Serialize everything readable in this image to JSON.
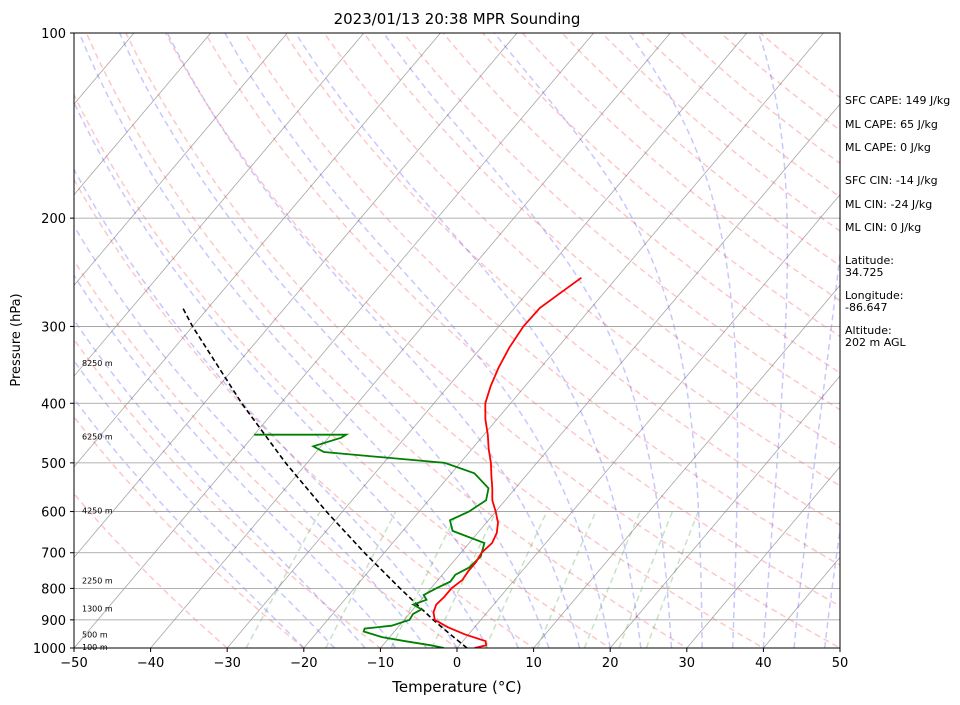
{
  "chart_data": {
    "type": "skew-t",
    "title": "2023/01/13 20:38 MPR Sounding",
    "xlabel": "Temperature (°C)",
    "ylabel": "Pressure (hPa)",
    "xlim": [
      -50,
      50
    ],
    "ylim": [
      1000,
      100
    ],
    "y_scale": "log",
    "grid": true,
    "x_ticks": [
      "−50",
      "−40",
      "−30",
      "−20",
      "−10",
      "0",
      "10",
      "20",
      "30",
      "40",
      "50"
    ],
    "x_tick_values": [
      -50,
      -40,
      -30,
      -20,
      -10,
      0,
      10,
      20,
      30,
      40,
      50
    ],
    "y_ticks": [
      "1000",
      "900",
      "800",
      "700",
      "600",
      "500",
      "400",
      "300",
      "200",
      "100"
    ],
    "y_tick_values": [
      1000,
      900,
      800,
      700,
      600,
      500,
      400,
      300,
      200,
      100
    ],
    "temperature": {
      "color": "#ff0000",
      "points": [
        [
          1000,
          2.3
        ],
        [
          990,
          3.5
        ],
        [
          975,
          3.0
        ],
        [
          950,
          -0.5
        ],
        [
          925,
          -3.5
        ],
        [
          900,
          -6.0
        ],
        [
          875,
          -7.0
        ],
        [
          850,
          -7.5
        ],
        [
          825,
          -7.3
        ],
        [
          800,
          -7.3
        ],
        [
          775,
          -6.8
        ],
        [
          750,
          -7.0
        ],
        [
          725,
          -7.0
        ],
        [
          700,
          -7.3
        ],
        [
          675,
          -7.0
        ],
        [
          650,
          -7.5
        ],
        [
          625,
          -8.5
        ],
        [
          600,
          -10.0
        ],
        [
          575,
          -11.7
        ],
        [
          550,
          -13.0
        ],
        [
          525,
          -14.5
        ],
        [
          500,
          -16.0
        ],
        [
          475,
          -17.8
        ],
        [
          450,
          -19.5
        ],
        [
          425,
          -21.5
        ],
        [
          400,
          -23.3
        ],
        [
          375,
          -24.5
        ],
        [
          350,
          -25.5
        ],
        [
          325,
          -26.3
        ],
        [
          300,
          -26.8
        ],
        [
          280,
          -26.7
        ],
        [
          265,
          -25.7
        ],
        [
          250,
          -24.6
        ]
      ]
    },
    "dewpoint": {
      "color": "#008000",
      "points": [
        [
          1000,
          -1.7
        ],
        [
          990,
          -3.7
        ],
        [
          975,
          -7.5
        ],
        [
          960,
          -11.0
        ],
        [
          940,
          -14.0
        ],
        [
          930,
          -14.2
        ],
        [
          920,
          -11.0
        ],
        [
          900,
          -9.3
        ],
        [
          880,
          -9.5
        ],
        [
          865,
          -8.9
        ],
        [
          850,
          -10.5
        ],
        [
          835,
          -9.3
        ],
        [
          820,
          -10.2
        ],
        [
          800,
          -9.3
        ],
        [
          780,
          -8.2
        ],
        [
          760,
          -8.3
        ],
        [
          740,
          -7.3
        ],
        [
          710,
          -7.0
        ],
        [
          675,
          -8.0
        ],
        [
          645,
          -13.5
        ],
        [
          620,
          -15.0
        ],
        [
          600,
          -13.5
        ],
        [
          575,
          -12.5
        ],
        [
          550,
          -13.5
        ],
        [
          520,
          -17.0
        ],
        [
          500,
          -22.0
        ],
        [
          480,
          -39.0
        ],
        [
          470,
          -41.0
        ],
        [
          455,
          -38.3
        ],
        [
          450,
          -38.0
        ],
        [
          450,
          -50.0
        ]
      ]
    },
    "parcel": {
      "color": "#000000",
      "points": [
        [
          1000,
          1.3
        ],
        [
          950,
          -2.4
        ],
        [
          900,
          -6.2
        ],
        [
          850,
          -10.0
        ],
        [
          800,
          -14.0
        ],
        [
          700,
          -22.6
        ],
        [
          600,
          -32.1
        ],
        [
          500,
          -42.8
        ],
        [
          400,
          -55.1
        ],
        [
          300,
          -70.0
        ],
        [
          280,
          -73.3
        ]
      ]
    },
    "height_labels": [
      {
        "p": 1000,
        "label": "100 m"
      },
      {
        "p": 955,
        "label": "500 m"
      },
      {
        "p": 865,
        "label": "1300 m"
      },
      {
        "p": 780,
        "label": "2250 m"
      },
      {
        "p": 600,
        "label": "4250 m"
      },
      {
        "p": 455,
        "label": "6250 m"
      },
      {
        "p": 345,
        "label": "8250 m"
      }
    ],
    "dry_adiabats_color": "#ff0000",
    "moist_adiabats_color": "#0000ff",
    "mixing_ratio_color": "#008000",
    "isotherm_color": "#808080"
  },
  "side_panel": {
    "sfc_cape": "SFC CAPE: 149 J/kg",
    "ml_cape_1": "ML CAPE: 65 J/kg",
    "ml_cape_2": "ML CAPE: 0 J/kg",
    "sfc_cin": "SFC CIN: -14 J/kg",
    "ml_cin_1": "ML CIN: -24 J/kg",
    "ml_cin_2": "ML CIN: 0 J/kg",
    "latitude_label": "Latitude:",
    "latitude_value": "34.725",
    "longitude_label": "Longitude:",
    "longitude_value": "-86.647",
    "altitude_label": "Altitude:",
    "altitude_value": "202 m AGL"
  }
}
